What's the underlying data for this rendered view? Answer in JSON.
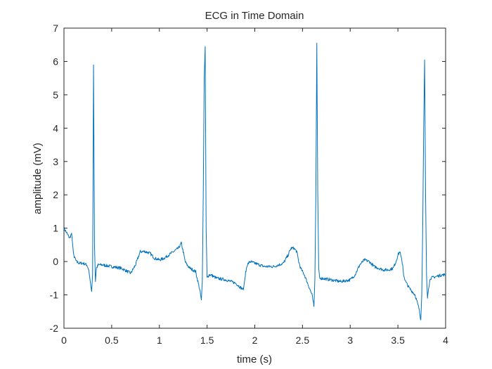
{
  "chart_data": {
    "type": "line",
    "title": "ECG in Time Domain",
    "xlabel": "time (s)",
    "ylabel": "amplitude (mV)",
    "xlim": [
      0,
      4
    ],
    "ylim": [
      -2,
      7
    ],
    "xticks": [
      0,
      0.5,
      1,
      1.5,
      2,
      2.5,
      3,
      3.5,
      4
    ],
    "xtick_labels": [
      "0",
      "0.5",
      "1",
      "1.5",
      "2",
      "2.5",
      "3",
      "3.5",
      "4"
    ],
    "yticks": [
      -2,
      -1,
      0,
      1,
      2,
      3,
      4,
      5,
      6,
      7
    ],
    "ytick_labels": [
      "-2",
      "-1",
      "0",
      "1",
      "2",
      "3",
      "4",
      "5",
      "6",
      "7"
    ],
    "grid": false,
    "line_color": "#0072BD",
    "series": [
      {
        "x": [
          0.0,
          0.02,
          0.04,
          0.06,
          0.08,
          0.1,
          0.13,
          0.16,
          0.2,
          0.24,
          0.26,
          0.28,
          0.29,
          0.3,
          0.305,
          0.31,
          0.32,
          0.33,
          0.34,
          0.36,
          0.4,
          0.5,
          0.6,
          0.7,
          0.75,
          0.8,
          0.85,
          0.9,
          0.95,
          1.0,
          1.05,
          1.1,
          1.15,
          1.2,
          1.23,
          1.25,
          1.27,
          1.29,
          1.32,
          1.38,
          1.42,
          1.44,
          1.45,
          1.46,
          1.47,
          1.48,
          1.49,
          1.5,
          1.51,
          1.52,
          1.54,
          1.6,
          1.7,
          1.8,
          1.88,
          1.9,
          1.92,
          1.95,
          2.0,
          2.05,
          2.1,
          2.15,
          2.2,
          2.25,
          2.3,
          2.35,
          2.38,
          2.41,
          2.44,
          2.46,
          2.48,
          2.52,
          2.56,
          2.6,
          2.62,
          2.63,
          2.64,
          2.65,
          2.66,
          2.67,
          2.68,
          2.7,
          2.8,
          2.9,
          3.0,
          3.05,
          3.1,
          3.15,
          3.2,
          3.25,
          3.3,
          3.35,
          3.4,
          3.45,
          3.48,
          3.5,
          3.52,
          3.55,
          3.56,
          3.58,
          3.62,
          3.68,
          3.72,
          3.74,
          3.75,
          3.76,
          3.77,
          3.78,
          3.79,
          3.8,
          3.81,
          3.82,
          3.84,
          3.9,
          3.96,
          4.0
        ],
        "y": [
          1.0,
          0.9,
          0.8,
          0.7,
          0.85,
          0.2,
          0.0,
          -0.05,
          -0.05,
          -0.1,
          -0.25,
          -0.7,
          -0.9,
          -0.4,
          2.5,
          5.9,
          0.5,
          -0.6,
          -0.2,
          -0.1,
          -0.1,
          -0.15,
          -0.2,
          -0.35,
          -0.1,
          0.3,
          0.3,
          0.25,
          0.1,
          0.05,
          0.1,
          0.2,
          0.3,
          0.4,
          0.55,
          0.3,
          0.0,
          -0.1,
          -0.2,
          -0.3,
          -0.8,
          -1.15,
          -0.6,
          2.0,
          5.5,
          6.45,
          1.0,
          -0.5,
          -0.45,
          -0.4,
          -0.4,
          -0.5,
          -0.55,
          -0.65,
          -0.85,
          -0.4,
          -0.1,
          0.0,
          -0.05,
          -0.1,
          -0.15,
          -0.15,
          -0.15,
          -0.1,
          -0.05,
          0.2,
          0.4,
          0.4,
          0.3,
          0.0,
          -0.2,
          -0.4,
          -0.7,
          -1.0,
          -1.35,
          -0.5,
          2.0,
          6.55,
          2.0,
          -0.2,
          -0.5,
          -0.5,
          -0.55,
          -0.6,
          -0.55,
          -0.4,
          -0.1,
          0.05,
          0.0,
          -0.15,
          -0.2,
          -0.25,
          -0.25,
          -0.2,
          0.0,
          0.2,
          0.3,
          -0.1,
          -0.4,
          -0.6,
          -0.8,
          -1.0,
          -1.4,
          -1.75,
          -1.0,
          1.0,
          4.0,
          6.05,
          2.0,
          -0.4,
          -1.1,
          -0.8,
          -0.5,
          -0.45,
          -0.4,
          -0.4
        ]
      }
    ]
  }
}
